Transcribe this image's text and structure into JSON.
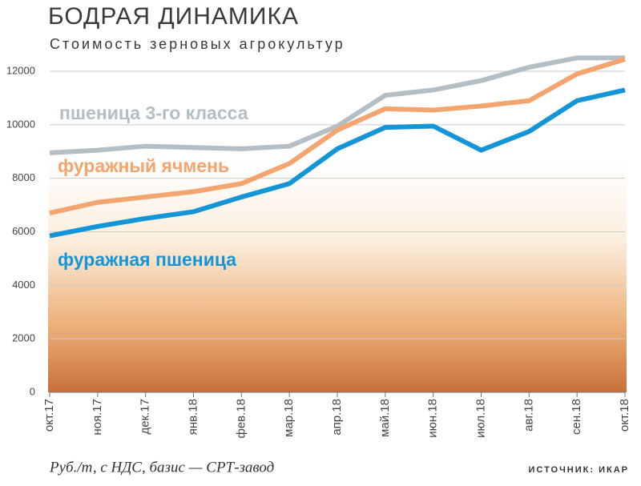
{
  "chart_data": {
    "type": "line",
    "title": "БОДРАЯ ДИНАМИКА",
    "subtitle": "Стоимость зерновых агрокультур",
    "note": "Руб./т, с НДС, базис — СРТ-завод",
    "source": "ИСТОЧНИК: ИКАР",
    "categories": [
      "окт.17",
      "ноя.17",
      "дек.17",
      "янв.18",
      "фев.18",
      "мар.18",
      "апр.18",
      "май.18",
      "июн.18",
      "июл.18",
      "авг.18",
      "сен.18",
      "окт.18"
    ],
    "series": [
      {
        "name": "пшеница 3-го класса",
        "color": "#b4bec5",
        "values": [
          8950,
          9050,
          9200,
          9150,
          9100,
          9200,
          9950,
          11100,
          11300,
          11650,
          12150,
          12500,
          12500
        ]
      },
      {
        "name": "фуражный ячмень",
        "color": "#f4a46e",
        "values": [
          6700,
          7100,
          7300,
          7500,
          7800,
          8550,
          9800,
          10600,
          10550,
          10700,
          10900,
          11900,
          12450
        ]
      },
      {
        "name": "фуражная пшеница",
        "color": "#1496d6",
        "values": [
          5850,
          6200,
          6500,
          6750,
          7300,
          7800,
          9100,
          9900,
          9950,
          9050,
          9750,
          10900,
          11300
        ]
      }
    ],
    "ylim": [
      0,
      12500
    ],
    "yticks": [
      0,
      2000,
      4000,
      6000,
      8000,
      10000,
      12000
    ],
    "grid": true
  }
}
